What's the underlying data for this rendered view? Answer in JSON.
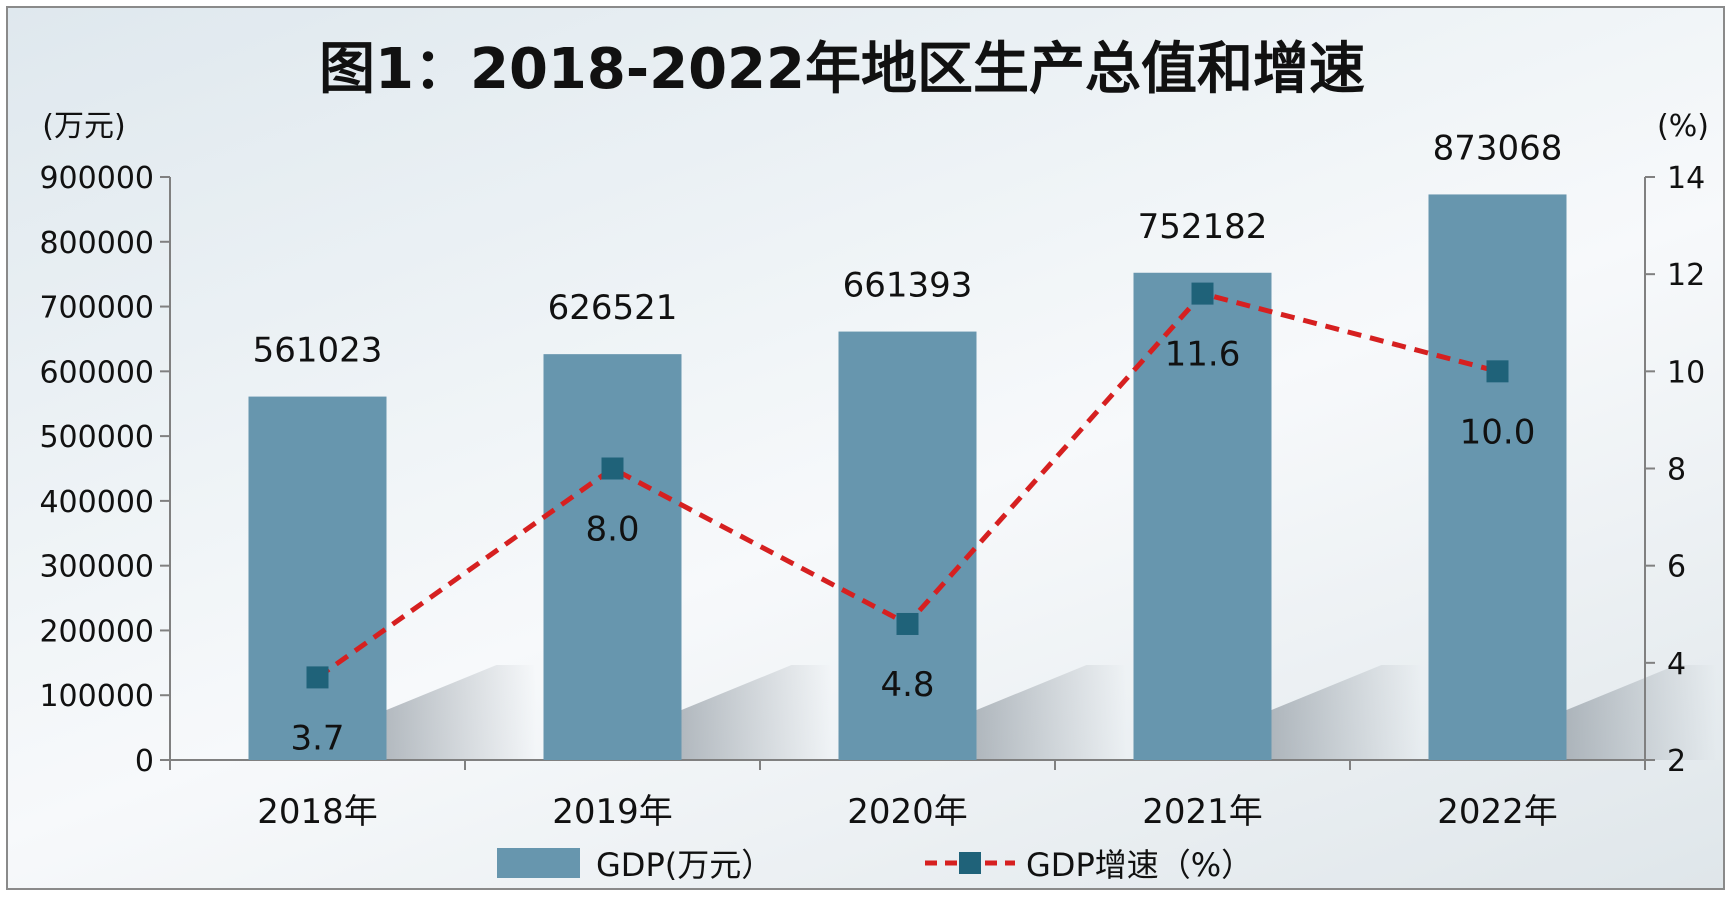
{
  "chart_data": {
    "type": "bar",
    "title": "图1：2018-2022年地区生产总值和增速",
    "categories": [
      "2018年",
      "2019年",
      "2020年",
      "2021年",
      "2022年"
    ],
    "left_axis": {
      "unit_label": "(万元)",
      "ticks": [
        "0",
        "100000",
        "200000",
        "300000",
        "400000",
        "500000",
        "600000",
        "700000",
        "800000",
        "900000"
      ],
      "ylim": [
        0,
        900000
      ]
    },
    "right_axis": {
      "unit_label": "(%)",
      "ticks": [
        "2",
        "4",
        "6",
        "8",
        "10",
        "12",
        "14"
      ],
      "ylim": [
        2,
        14
      ]
    },
    "series": [
      {
        "name": "GDP(万元）",
        "type": "bar",
        "axis": "left",
        "values": [
          561023,
          626521,
          661393,
          752182,
          873068
        ],
        "labels": [
          "561023",
          "626521",
          "661393",
          "752182",
          "873068"
        ]
      },
      {
        "name": "GDP增速（%）",
        "type": "line",
        "axis": "right",
        "values": [
          3.7,
          8.0,
          4.8,
          11.6,
          10.0
        ],
        "labels": [
          "3.7",
          "8.0",
          "4.8",
          "11.6",
          "10.0"
        ]
      }
    ],
    "grid": false,
    "legend": "bottom",
    "colors": {
      "bar": "#6796ae",
      "line": "#d62020",
      "marker": "#1f6279",
      "text": "#111111"
    }
  }
}
